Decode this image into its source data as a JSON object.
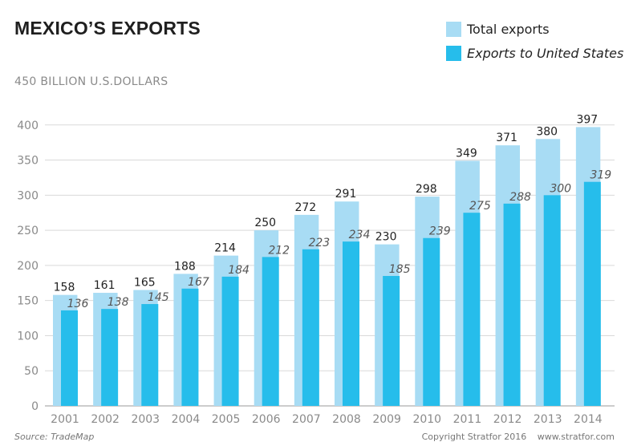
{
  "title": "MEXICO’S EXPORTS",
  "legend": {
    "total_label": "Total exports",
    "us_label": "Exports to United States"
  },
  "unit_label": "450 BILLION U.S.DOLLARS",
  "source": "Source: TradeMap",
  "copyright": "Copyright Stratfor 2016",
  "website": "www.stratfor.com",
  "colors": {
    "total": "#a8dcf4",
    "us": "#26bdeb",
    "grid": "#d9d9d9",
    "axis_text": "#8a8a8a"
  },
  "chart_data": {
    "type": "bar",
    "title": "MEXICO’S EXPORTS",
    "ylabel": "BILLION U.S.DOLLARS",
    "xlabel": "",
    "ylim": [
      0,
      450
    ],
    "yticks": [
      0,
      50,
      100,
      150,
      200,
      250,
      300,
      350,
      400
    ],
    "grid": true,
    "legend_position": "top-right",
    "categories": [
      "2001",
      "2002",
      "2003",
      "2004",
      "2005",
      "2006",
      "2007",
      "2008",
      "2009",
      "2010",
      "2011",
      "2012",
      "2013",
      "2014"
    ],
    "series": [
      {
        "name": "Total exports",
        "values": [
          158,
          161,
          165,
          188,
          214,
          250,
          272,
          291,
          230,
          298,
          349,
          371,
          380,
          397
        ]
      },
      {
        "name": "Exports to United States",
        "values": [
          136,
          138,
          145,
          167,
          184,
          212,
          223,
          234,
          185,
          239,
          275,
          288,
          300,
          319
        ]
      }
    ]
  }
}
